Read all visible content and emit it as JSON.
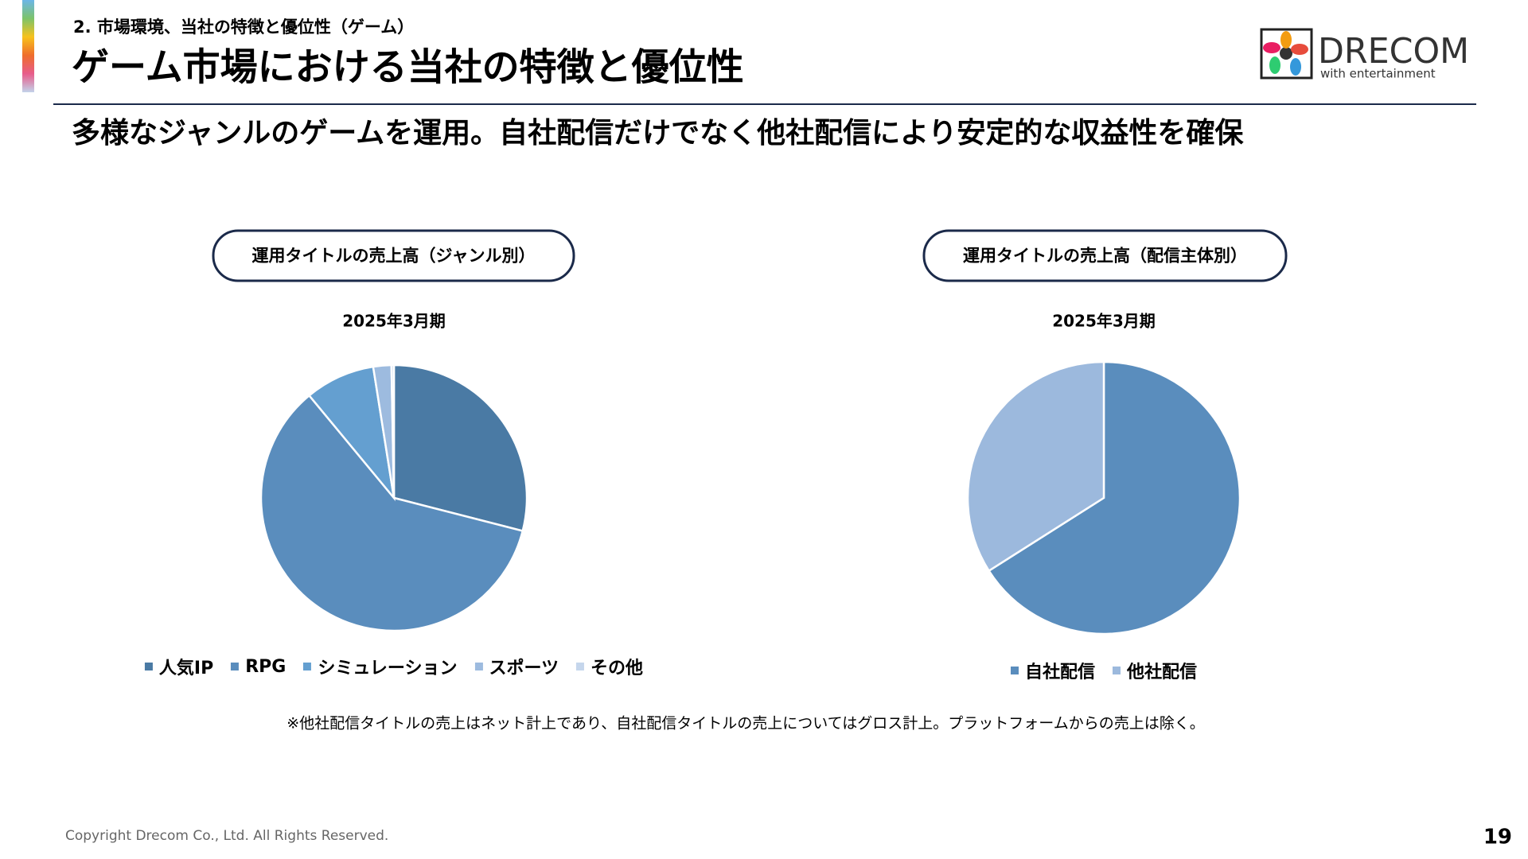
{
  "header": {
    "section": "2. 市場環境、当社の特徴と優位性（ゲーム）",
    "title": "ゲーム市場における当社の特徴と優位性",
    "lead": "多様なジャンルのゲームを運用。自社配信だけでなく他社配信により安定的な収益性を確保",
    "logo": "DRECOM",
    "logo_tagline": "with entertainment"
  },
  "chart_data": [
    {
      "type": "pie",
      "label": "運用タイトルの売上高（ジャンル別）",
      "title": "2025年3月期",
      "categories": [
        "人気IP",
        "RPG",
        "シミュレーション",
        "スポーツ",
        "その他"
      ],
      "values": [
        29,
        60,
        8.5,
        2.2,
        0.3
      ],
      "colors": [
        "#4a7aa4",
        "#5a8dbd",
        "#649fd0",
        "#9dbbdf",
        "#c5d6ec"
      ]
    },
    {
      "type": "pie",
      "label": "運用タイトルの売上高（配信主体別）",
      "title": "2025年3月期",
      "categories": [
        "自社配信",
        "他社配信"
      ],
      "values": [
        66,
        34
      ],
      "colors": [
        "#5a8dbd",
        "#9cb9dd"
      ]
    }
  ],
  "footnote": "※他社配信タイトルの売上はネット計上であり、自社配信タイトルの売上についてはグロス計上。プラットフォームからの売上は除く。",
  "copyright": "Copyright Drecom Co., Ltd. All Rights Reserved.",
  "page_number": "19"
}
